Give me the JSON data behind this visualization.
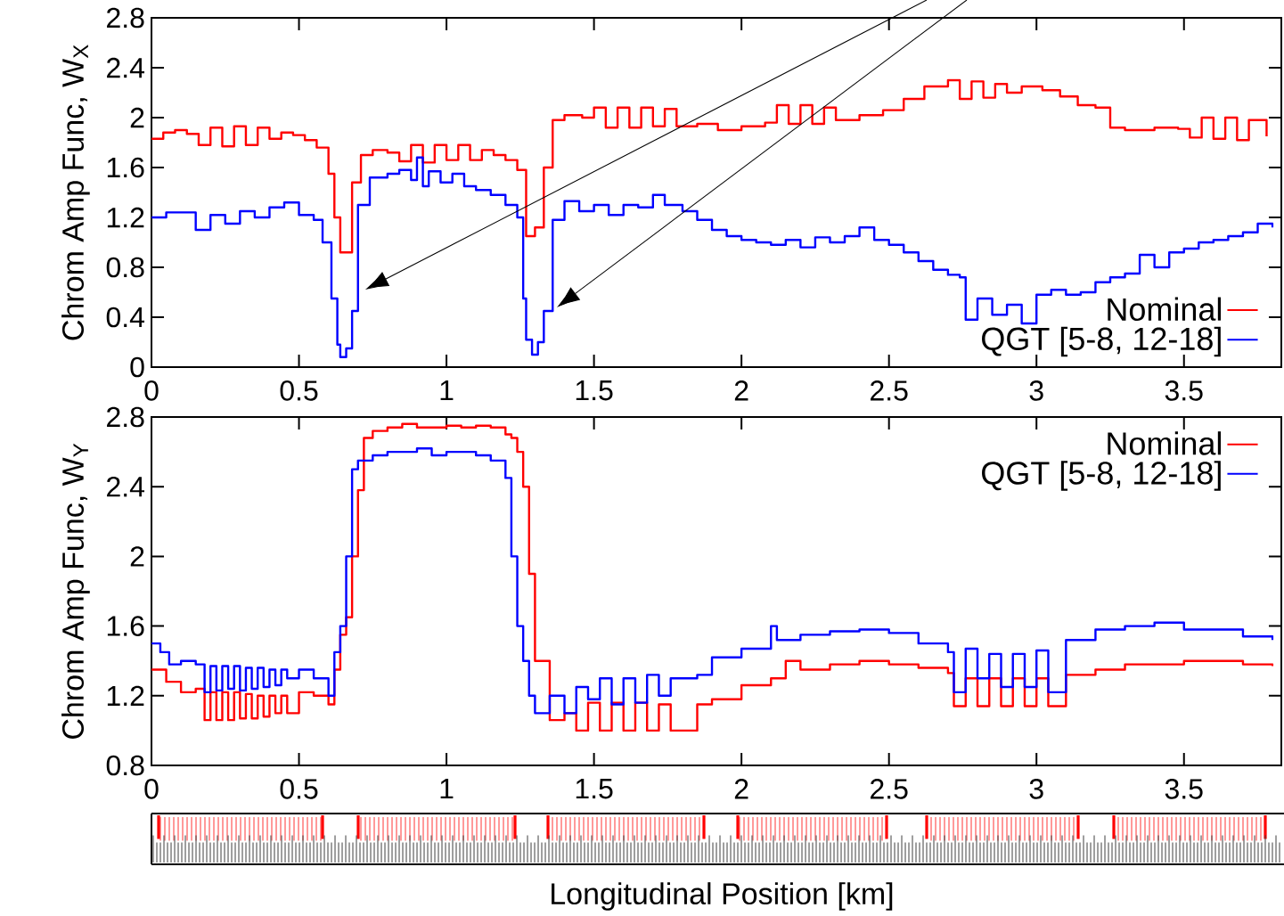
{
  "chart_data": [
    {
      "type": "step",
      "ylabel": "Chrom Amp Func, W$_{X}$",
      "xlim": [
        0,
        3.83
      ],
      "xticks": [
        0,
        0.5,
        1,
        1.5,
        2,
        2.5,
        3,
        3.5
      ],
      "ylim": [
        0,
        2.8
      ],
      "yticks": [
        0,
        0.4,
        0.8,
        1.2,
        1.6,
        2,
        2.4,
        2.8
      ],
      "legend": "bottom right",
      "series": [
        {
          "name": "Nominal",
          "color": "#ff0000",
          "x": [
            0,
            0.04,
            0.08,
            0.12,
            0.16,
            0.2,
            0.24,
            0.28,
            0.32,
            0.36,
            0.4,
            0.44,
            0.48,
            0.52,
            0.56,
            0.6,
            0.62,
            0.64,
            0.68,
            0.71,
            0.75,
            0.8,
            0.84,
            0.88,
            0.92,
            0.96,
            1.0,
            1.04,
            1.08,
            1.12,
            1.16,
            1.2,
            1.24,
            1.27,
            1.3,
            1.33,
            1.36,
            1.4,
            1.46,
            1.5,
            1.54,
            1.58,
            1.62,
            1.66,
            1.7,
            1.74,
            1.78,
            1.85,
            1.92,
            2.0,
            2.08,
            2.12,
            2.16,
            2.2,
            2.24,
            2.28,
            2.32,
            2.4,
            2.48,
            2.55,
            2.62,
            2.7,
            2.74,
            2.78,
            2.82,
            2.86,
            2.9,
            2.95,
            3.02,
            3.08,
            3.14,
            3.2,
            3.25,
            3.3,
            3.4,
            3.48,
            3.52,
            3.56,
            3.6,
            3.64,
            3.68,
            3.72,
            3.78
          ],
          "values": [
            1.83,
            1.88,
            1.9,
            1.87,
            1.78,
            1.92,
            1.77,
            1.93,
            1.78,
            1.92,
            1.83,
            1.88,
            1.86,
            1.82,
            1.76,
            1.55,
            1.2,
            0.92,
            1.48,
            1.7,
            1.74,
            1.72,
            1.65,
            1.78,
            1.64,
            1.78,
            1.66,
            1.78,
            1.66,
            1.74,
            1.7,
            1.66,
            1.58,
            1.05,
            1.12,
            1.6,
            1.98,
            2.02,
            2.0,
            2.08,
            1.92,
            2.08,
            1.92,
            2.08,
            1.93,
            2.07,
            1.93,
            1.95,
            1.9,
            1.93,
            1.96,
            2.1,
            1.95,
            2.1,
            1.95,
            2.08,
            1.98,
            2.02,
            2.06,
            2.15,
            2.25,
            2.3,
            2.15,
            2.29,
            2.16,
            2.27,
            2.2,
            2.25,
            2.22,
            2.17,
            2.1,
            2.08,
            1.92,
            1.9,
            1.92,
            1.91,
            1.84,
            2.0,
            1.83,
            2.0,
            1.82,
            1.98,
            1.85
          ]
        },
        {
          "name": "QGT [5-8, 12-18]",
          "color": "#0000ff",
          "x": [
            0,
            0.05,
            0.1,
            0.15,
            0.2,
            0.25,
            0.3,
            0.35,
            0.4,
            0.45,
            0.5,
            0.55,
            0.58,
            0.61,
            0.63,
            0.64,
            0.66,
            0.68,
            0.7,
            0.74,
            0.8,
            0.84,
            0.88,
            0.9,
            0.92,
            0.94,
            0.98,
            1.02,
            1.06,
            1.1,
            1.15,
            1.2,
            1.24,
            1.26,
            1.27,
            1.29,
            1.31,
            1.33,
            1.36,
            1.4,
            1.45,
            1.5,
            1.55,
            1.6,
            1.65,
            1.7,
            1.74,
            1.8,
            1.85,
            1.9,
            1.95,
            2.0,
            2.05,
            2.1,
            2.15,
            2.2,
            2.25,
            2.3,
            2.35,
            2.4,
            2.45,
            2.5,
            2.55,
            2.6,
            2.65,
            2.7,
            2.74,
            2.76,
            2.8,
            2.85,
            2.9,
            2.95,
            3.0,
            3.05,
            3.1,
            3.15,
            3.2,
            3.25,
            3.3,
            3.35,
            3.4,
            3.45,
            3.5,
            3.55,
            3.6,
            3.65,
            3.7,
            3.75,
            3.8
          ],
          "values": [
            1.2,
            1.24,
            1.24,
            1.1,
            1.22,
            1.15,
            1.25,
            1.2,
            1.28,
            1.32,
            1.22,
            1.18,
            1.0,
            0.55,
            0.18,
            0.08,
            0.15,
            0.45,
            1.3,
            1.52,
            1.55,
            1.58,
            1.5,
            1.68,
            1.45,
            1.57,
            1.48,
            1.55,
            1.45,
            1.42,
            1.38,
            1.3,
            1.2,
            0.55,
            0.22,
            0.1,
            0.2,
            0.45,
            1.18,
            1.33,
            1.25,
            1.3,
            1.22,
            1.3,
            1.28,
            1.38,
            1.3,
            1.25,
            1.18,
            1.1,
            1.05,
            1.02,
            1.0,
            0.98,
            1.02,
            0.96,
            1.04,
            1.0,
            1.05,
            1.12,
            1.02,
            0.98,
            0.92,
            0.85,
            0.78,
            0.74,
            0.72,
            0.38,
            0.55,
            0.42,
            0.5,
            0.35,
            0.58,
            0.62,
            0.58,
            0.6,
            0.68,
            0.72,
            0.75,
            0.9,
            0.8,
            0.92,
            0.95,
            1.0,
            1.02,
            1.05,
            1.08,
            1.15,
            1.12
          ]
        }
      ]
    },
    {
      "type": "step",
      "ylabel": "Chrom Amp Func, W$_{Y}$",
      "xlabel": "Longitudinal Position [km]",
      "xlim": [
        0,
        3.83
      ],
      "xticks": [
        0,
        0.5,
        1,
        1.5,
        2,
        2.5,
        3,
        3.5
      ],
      "ylim": [
        0.8,
        2.8
      ],
      "yticks": [
        0.8,
        1.2,
        1.6,
        2,
        2.4,
        2.8
      ],
      "legend": "top right",
      "series": [
        {
          "name": "Nominal",
          "color": "#ff0000",
          "x": [
            0,
            0.05,
            0.1,
            0.15,
            0.18,
            0.2,
            0.22,
            0.24,
            0.26,
            0.28,
            0.3,
            0.32,
            0.34,
            0.36,
            0.38,
            0.4,
            0.42,
            0.44,
            0.46,
            0.5,
            0.55,
            0.6,
            0.62,
            0.64,
            0.66,
            0.68,
            0.7,
            0.72,
            0.75,
            0.8,
            0.85,
            0.9,
            0.95,
            1.0,
            1.05,
            1.1,
            1.15,
            1.2,
            1.22,
            1.24,
            1.26,
            1.28,
            1.3,
            1.35,
            1.4,
            1.44,
            1.48,
            1.52,
            1.56,
            1.6,
            1.64,
            1.68,
            1.72,
            1.76,
            1.85,
            1.9,
            2.0,
            2.1,
            2.15,
            2.2,
            2.3,
            2.4,
            2.5,
            2.6,
            2.7,
            2.72,
            2.76,
            2.8,
            2.84,
            2.88,
            2.92,
            2.96,
            3.0,
            3.04,
            3.1,
            3.2,
            3.3,
            3.4,
            3.5,
            3.6,
            3.7,
            3.8
          ],
          "values": [
            1.35,
            1.28,
            1.22,
            1.24,
            1.06,
            1.22,
            1.06,
            1.22,
            1.06,
            1.22,
            1.07,
            1.21,
            1.07,
            1.2,
            1.08,
            1.2,
            1.1,
            1.2,
            1.1,
            1.22,
            1.2,
            1.15,
            1.35,
            1.55,
            1.65,
            2.0,
            2.38,
            2.68,
            2.72,
            2.74,
            2.76,
            2.74,
            2.74,
            2.75,
            2.74,
            2.75,
            2.74,
            2.7,
            2.68,
            2.6,
            2.4,
            1.9,
            1.4,
            1.06,
            1.1,
            1.0,
            1.16,
            1.0,
            1.16,
            1.0,
            1.16,
            1.0,
            1.15,
            1.0,
            1.15,
            1.18,
            1.26,
            1.3,
            1.4,
            1.35,
            1.38,
            1.4,
            1.38,
            1.36,
            1.33,
            1.14,
            1.3,
            1.14,
            1.3,
            1.14,
            1.3,
            1.14,
            1.3,
            1.14,
            1.32,
            1.35,
            1.38,
            1.38,
            1.4,
            1.4,
            1.38,
            1.37
          ]
        },
        {
          "name": "QGT [5-8, 12-18]",
          "color": "#0000ff",
          "x": [
            0,
            0.03,
            0.06,
            0.1,
            0.15,
            0.18,
            0.2,
            0.22,
            0.24,
            0.26,
            0.28,
            0.3,
            0.32,
            0.34,
            0.36,
            0.38,
            0.4,
            0.42,
            0.44,
            0.46,
            0.5,
            0.55,
            0.6,
            0.62,
            0.64,
            0.66,
            0.68,
            0.7,
            0.75,
            0.8,
            0.85,
            0.9,
            0.95,
            1.0,
            1.05,
            1.1,
            1.15,
            1.2,
            1.22,
            1.24,
            1.26,
            1.28,
            1.3,
            1.35,
            1.4,
            1.44,
            1.48,
            1.52,
            1.56,
            1.6,
            1.64,
            1.68,
            1.72,
            1.76,
            1.85,
            1.9,
            2.0,
            2.1,
            2.12,
            2.2,
            2.3,
            2.4,
            2.5,
            2.6,
            2.7,
            2.72,
            2.76,
            2.8,
            2.84,
            2.88,
            2.92,
            2.96,
            3.0,
            3.04,
            3.1,
            3.2,
            3.3,
            3.4,
            3.5,
            3.6,
            3.7,
            3.8
          ],
          "values": [
            1.5,
            1.45,
            1.38,
            1.4,
            1.38,
            1.22,
            1.37,
            1.23,
            1.37,
            1.24,
            1.37,
            1.23,
            1.36,
            1.24,
            1.36,
            1.25,
            1.35,
            1.26,
            1.35,
            1.3,
            1.35,
            1.3,
            1.2,
            1.45,
            1.6,
            2.0,
            2.5,
            2.55,
            2.58,
            2.6,
            2.6,
            2.62,
            2.58,
            2.6,
            2.6,
            2.58,
            2.55,
            2.45,
            2.0,
            1.6,
            1.4,
            1.2,
            1.1,
            1.2,
            1.1,
            1.25,
            1.18,
            1.3,
            1.15,
            1.3,
            1.16,
            1.32,
            1.2,
            1.3,
            1.32,
            1.42,
            1.47,
            1.6,
            1.52,
            1.55,
            1.57,
            1.58,
            1.56,
            1.5,
            1.45,
            1.22,
            1.47,
            1.3,
            1.44,
            1.25,
            1.44,
            1.25,
            1.46,
            1.22,
            1.52,
            1.58,
            1.6,
            1.62,
            1.58,
            1.58,
            1.54,
            1.52
          ]
        }
      ]
    }
  ]
}
